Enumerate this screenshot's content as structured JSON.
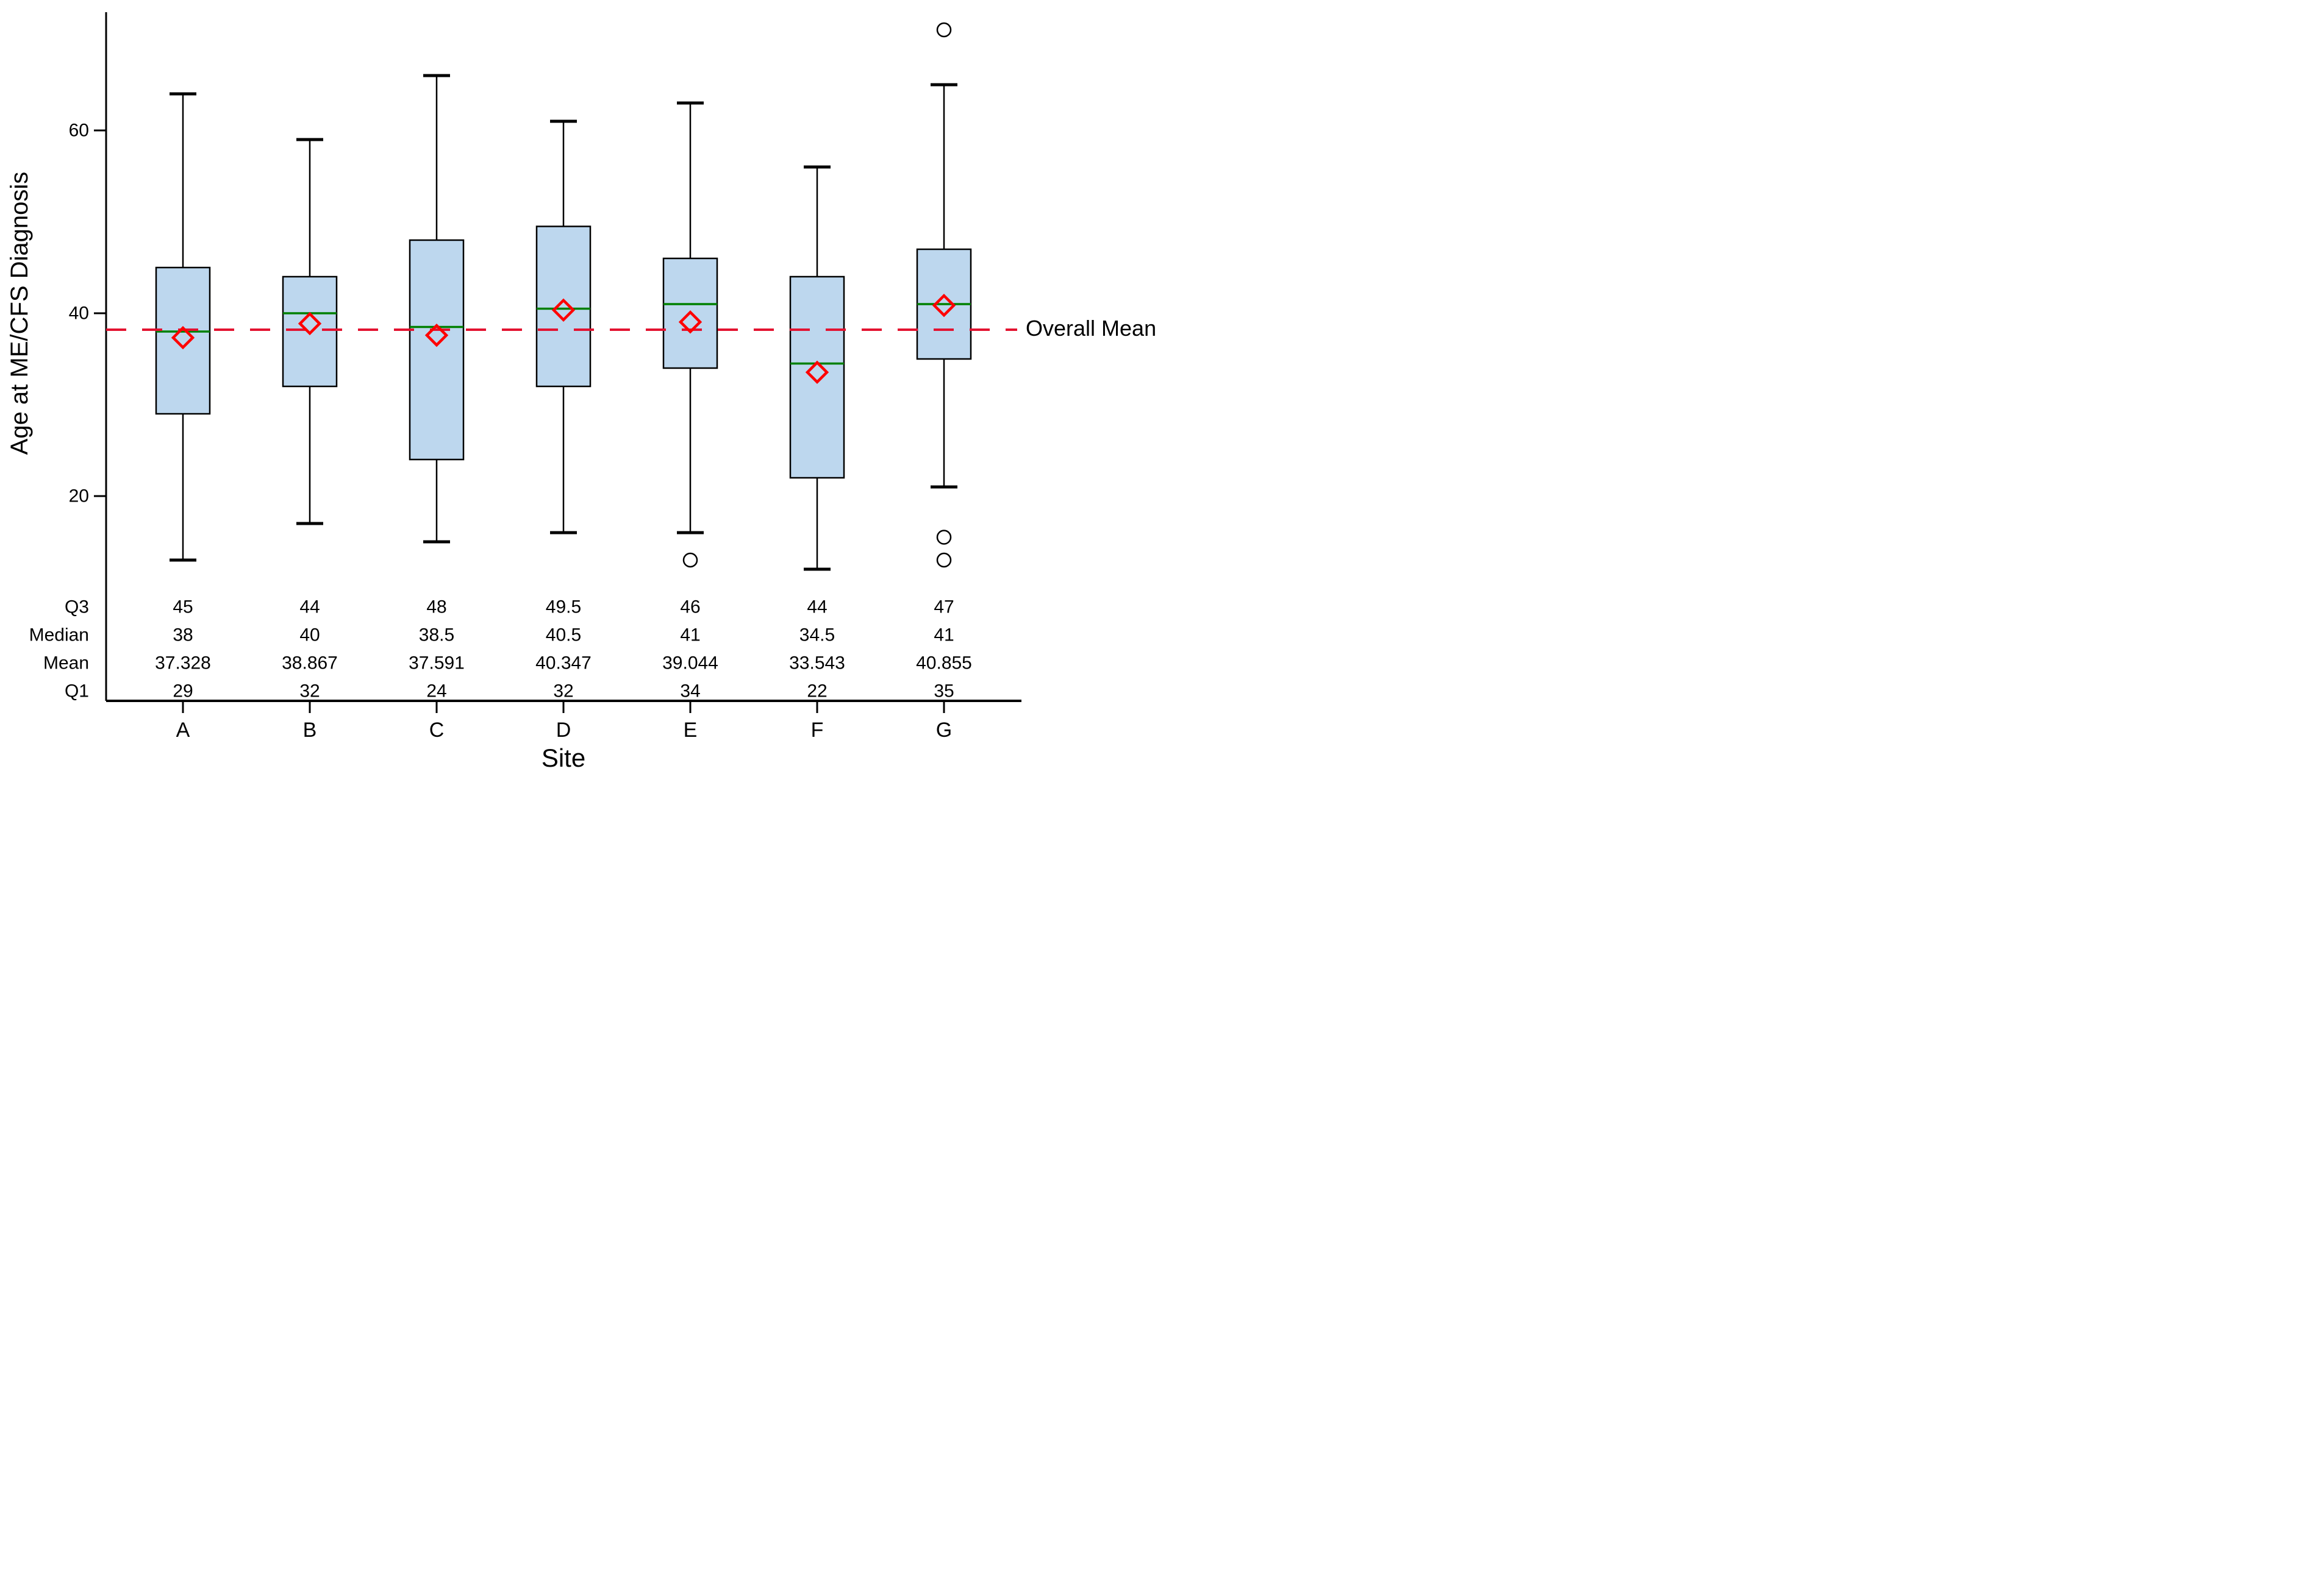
{
  "chart_data": {
    "type": "boxplot",
    "title": "",
    "xlabel": "Site",
    "ylabel": "Age at ME/CFS Diagnosis",
    "categories": [
      "A",
      "B",
      "C",
      "D",
      "E",
      "F",
      "G"
    ],
    "series": [
      {
        "site": "A",
        "q1": 29,
        "median": 38,
        "mean": 37.328,
        "q3": 45,
        "whisker_low": 13,
        "whisker_high": 64,
        "outliers": []
      },
      {
        "site": "B",
        "q1": 32,
        "median": 40,
        "mean": 38.867,
        "q3": 44,
        "whisker_low": 17,
        "whisker_high": 59,
        "outliers": []
      },
      {
        "site": "C",
        "q1": 24,
        "median": 38.5,
        "mean": 37.591,
        "q3": 48,
        "whisker_low": 15,
        "whisker_high": 66,
        "outliers": []
      },
      {
        "site": "D",
        "q1": 32,
        "median": 40.5,
        "mean": 40.347,
        "q3": 49.5,
        "whisker_low": 16,
        "whisker_high": 61,
        "outliers": []
      },
      {
        "site": "E",
        "q1": 34,
        "median": 41,
        "mean": 39.044,
        "q3": 46,
        "whisker_low": 16,
        "whisker_high": 63,
        "outliers": [
          13
        ]
      },
      {
        "site": "F",
        "q1": 22,
        "median": 34.5,
        "mean": 33.543,
        "q3": 44,
        "whisker_low": 12,
        "whisker_high": 56,
        "outliers": []
      },
      {
        "site": "G",
        "q1": 35,
        "median": 41,
        "mean": 40.855,
        "q3": 47,
        "whisker_low": 21,
        "whisker_high": 65,
        "outliers": [
          71,
          15.5,
          13
        ]
      }
    ],
    "reference_line": {
      "label": "Overall Mean",
      "value": 38.2,
      "style": "dashed",
      "color": "#e31230"
    },
    "y_ticks": [
      20,
      40,
      60
    ],
    "stats_table": {
      "row_labels": [
        "Q3",
        "Median",
        "Mean",
        "Q1"
      ],
      "row_keys": [
        "q3",
        "median",
        "mean",
        "q1"
      ]
    },
    "legend_position": "none",
    "grid": false,
    "colors": {
      "box_fill": "#bdd7ee",
      "box_border": "#000000",
      "median_line": "#008000",
      "mean_marker": "#ff0000",
      "outlier_marker": "#000000",
      "axis": "#000000",
      "text": "#000000"
    }
  }
}
